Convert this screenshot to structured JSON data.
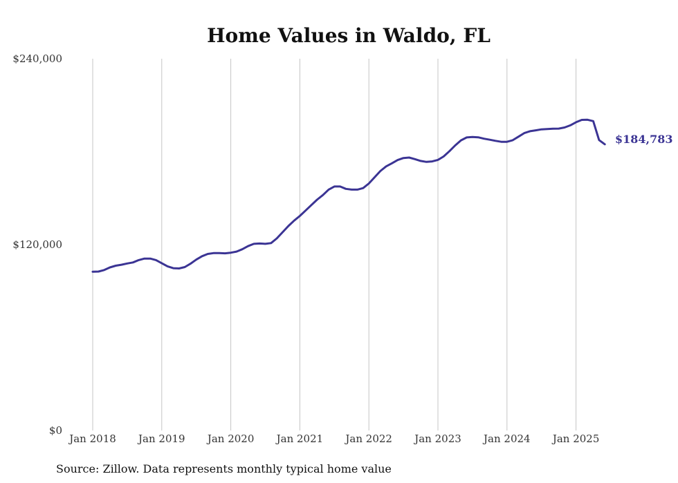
{
  "chart_data": {
    "type": "line",
    "title": "Home Values in Waldo, FL",
    "source": "Source: Zillow. Data represents monthly typical home value",
    "end_label": "$184,783",
    "ylim": [
      0,
      240000
    ],
    "y_ticks": [
      {
        "value": 0,
        "label": "$0"
      },
      {
        "value": 120000,
        "label": "$120,000"
      },
      {
        "value": 240000,
        "label": "$240,000"
      }
    ],
    "x_ticks": [
      {
        "value": "2018-01",
        "label": "Jan 2018"
      },
      {
        "value": "2019-01",
        "label": "Jan 2019"
      },
      {
        "value": "2020-01",
        "label": "Jan 2020"
      },
      {
        "value": "2021-01",
        "label": "Jan 2021"
      },
      {
        "value": "2022-01",
        "label": "Jan 2022"
      },
      {
        "value": "2023-01",
        "label": "Jan 2023"
      },
      {
        "value": "2024-01",
        "label": "Jan 2024"
      },
      {
        "value": "2025-01",
        "label": "Jan 2025"
      }
    ],
    "grid": "vertical",
    "color": "#3b3494",
    "series": [
      {
        "x": [
          "2018-01",
          "2018-02",
          "2018-03",
          "2018-04",
          "2018-05",
          "2018-06",
          "2018-07",
          "2018-08",
          "2018-09",
          "2018-10",
          "2018-11",
          "2018-12",
          "2019-01",
          "2019-02",
          "2019-03",
          "2019-04",
          "2019-05",
          "2019-06",
          "2019-07",
          "2019-08",
          "2019-09",
          "2019-10",
          "2019-11",
          "2019-12",
          "2020-01",
          "2020-02",
          "2020-03",
          "2020-04",
          "2020-05",
          "2020-06",
          "2020-07",
          "2020-08",
          "2020-09",
          "2020-10",
          "2020-11",
          "2020-12",
          "2021-01",
          "2021-02",
          "2021-03",
          "2021-04",
          "2021-05",
          "2021-06",
          "2021-07",
          "2021-08",
          "2021-09",
          "2021-10",
          "2021-11",
          "2021-12",
          "2022-01",
          "2022-02",
          "2022-03",
          "2022-04",
          "2022-05",
          "2022-06",
          "2022-07",
          "2022-08",
          "2022-09",
          "2022-10",
          "2022-11",
          "2022-12",
          "2023-01",
          "2023-02",
          "2023-03",
          "2023-04",
          "2023-05",
          "2023-06",
          "2023-07",
          "2023-08",
          "2023-09",
          "2023-10",
          "2023-11",
          "2023-12",
          "2024-01",
          "2024-02",
          "2024-03",
          "2024-04",
          "2024-05",
          "2024-06",
          "2024-07",
          "2024-08",
          "2024-09",
          "2024-10",
          "2024-11",
          "2024-12",
          "2025-01",
          "2025-02",
          "2025-03",
          "2025-04",
          "2025-05",
          "2025-06"
        ],
        "values": [
          102500,
          102600,
          103600,
          105300,
          106400,
          107000,
          107800,
          108500,
          110000,
          111000,
          111000,
          110000,
          108000,
          106000,
          104800,
          104600,
          105500,
          107700,
          110300,
          112500,
          114000,
          114500,
          114500,
          114400,
          114800,
          115500,
          117000,
          119000,
          120500,
          120700,
          120500,
          121000,
          124000,
          128000,
          132000,
          135500,
          138500,
          142000,
          145500,
          149000,
          152000,
          155500,
          157500,
          157500,
          156000,
          155500,
          155500,
          156500,
          159500,
          163500,
          167500,
          170500,
          172500,
          174600,
          175900,
          176200,
          175200,
          174000,
          173400,
          173700,
          174700,
          176900,
          180300,
          184000,
          187300,
          189200,
          189500,
          189300,
          188400,
          187700,
          187000,
          186400,
          186400,
          187400,
          189700,
          192000,
          193200,
          193800,
          194400,
          194600,
          194800,
          194900,
          195600,
          197000,
          199000,
          200500,
          200600,
          199700,
          187500,
          184783
        ]
      }
    ]
  }
}
